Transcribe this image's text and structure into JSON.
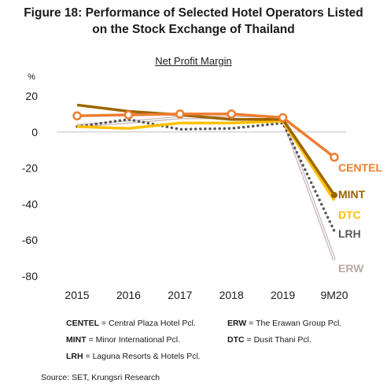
{
  "title_line1": "Figure 18: Performance of Selected Hotel Operators Listed",
  "title_line2": "on the Stock Exchange of Thailand",
  "subtitle": "Net Profit Margin",
  "legend": [
    {
      "abbr": "CENTEL",
      "sep": " = ",
      "name": "Central Plaza Hotel Pcl."
    },
    {
      "abbr": "ERW",
      "sep": " = ",
      "name": "The Erawan Group Pcl."
    },
    {
      "abbr": "MINT",
      "sep": " = ",
      "name": "Minor International Pcl."
    },
    {
      "abbr": "DTC",
      "sep": " = ",
      "name": "Dusit Thani Pcl."
    },
    {
      "abbr": "LRH",
      "sep": " = ",
      "name": "Laguna Resorts & Hotels Pcl."
    }
  ],
  "source": "Source: SET, Krungsri Research",
  "chart_data": {
    "type": "line",
    "ylabel": "%",
    "ylim": [
      -80,
      20
    ],
    "yticks": [
      20,
      0,
      -20,
      -40,
      -60,
      -80
    ],
    "categories": [
      "2015",
      "2016",
      "2017",
      "2018",
      "2019",
      "9M20"
    ],
    "grid": false,
    "legend": "inline-right",
    "series": [
      {
        "name": "CENTEL",
        "values": [
          9,
          9.5,
          10,
          10,
          8,
          -14
        ],
        "color": "#ed7d31",
        "style": "solid-markers"
      },
      {
        "name": "MINT",
        "values": [
          15,
          11.5,
          9.5,
          7,
          7,
          -35
        ],
        "color": "#9c6500",
        "style": "solid"
      },
      {
        "name": "DTC",
        "values": [
          3,
          2,
          5,
          5,
          6,
          -38
        ],
        "color": "#ffc000",
        "style": "solid"
      },
      {
        "name": "LRH",
        "values": [
          3,
          7,
          1.5,
          2,
          5,
          -55
        ],
        "color": "#595959",
        "style": "dotted"
      },
      {
        "name": "ERW",
        "values": [
          3.5,
          5.5,
          8,
          8,
          7.5,
          -71
        ],
        "color": "#c8b8b8",
        "style": "double"
      }
    ]
  }
}
